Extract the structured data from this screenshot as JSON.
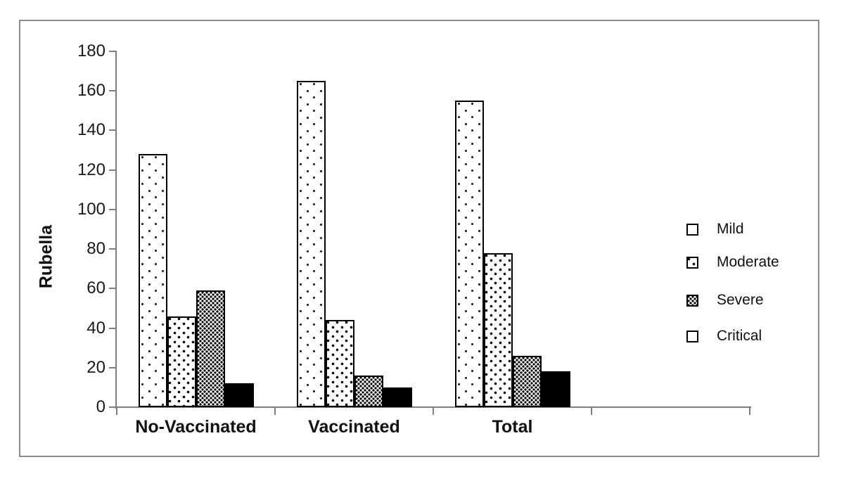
{
  "chart_data": {
    "type": "bar",
    "title": "",
    "ylabel": "Rubella",
    "xlabel": "",
    "categories": [
      "No-Vaccinated",
      "Vaccinated",
      "Total"
    ],
    "series": [
      {
        "name": "Mild",
        "pattern": "dots-sparse",
        "fill": "#ffffff",
        "values": [
          128,
          165,
          155
        ]
      },
      {
        "name": "Moderate",
        "pattern": "dots-medium",
        "fill": "#ffffff",
        "values": [
          46,
          44,
          78
        ]
      },
      {
        "name": "Severe",
        "pattern": "dots-dense",
        "fill": "#ffffff",
        "values": [
          59,
          16,
          26
        ]
      },
      {
        "name": "Critical",
        "pattern": "solid",
        "fill": "#000000",
        "values": [
          12,
          10,
          18
        ]
      }
    ],
    "ylim": [
      0,
      180
    ],
    "yticks": [
      0,
      20,
      40,
      60,
      80,
      100,
      120,
      140,
      160,
      180
    ],
    "legend": [
      "Mild",
      "Moderate",
      "Severe",
      "Critical"
    ],
    "legend_position": "right",
    "grid": false,
    "colors": {
      "axis": "#7f7f7f",
      "frame": "#8c8c8c",
      "bar_outline": "#000000",
      "text": "#1a1a1a",
      "background": "#ffffff"
    }
  }
}
